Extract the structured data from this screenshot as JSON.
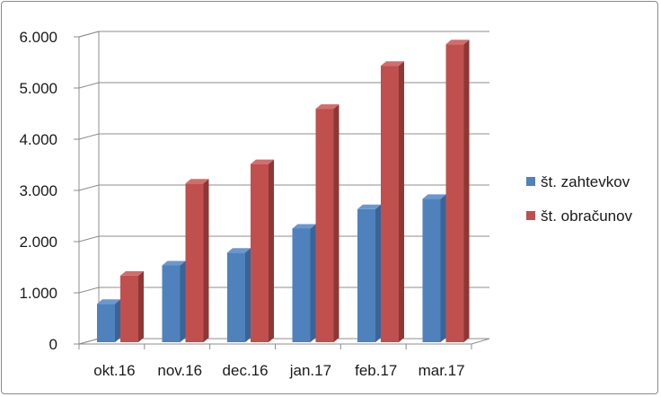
{
  "chart_data": {
    "type": "bar",
    "categories": [
      "okt.16",
      "nov.16",
      "dec.16",
      "jan.17",
      "feb.17",
      "mar.17"
    ],
    "series": [
      {
        "name": "št. zahtevkov",
        "values": [
          750,
          1500,
          1750,
          2220,
          2600,
          2800
        ],
        "color": "#4f81bd",
        "side_color": "#3a6496",
        "top_color": "#6b97cd"
      },
      {
        "name": "št. obračunov",
        "values": [
          1300,
          3100,
          3480,
          4560,
          5400,
          5820
        ],
        "color": "#c0504d",
        "side_color": "#8e3735",
        "top_color": "#d06e6b"
      }
    ],
    "ylim": [
      0,
      6000
    ],
    "yticks": [
      "0",
      "1.000",
      "2.000",
      "3.000",
      "4.000",
      "5.000",
      "6.000"
    ],
    "grid": true,
    "legend_position": "right",
    "title": "",
    "xlabel": "",
    "ylabel": ""
  }
}
